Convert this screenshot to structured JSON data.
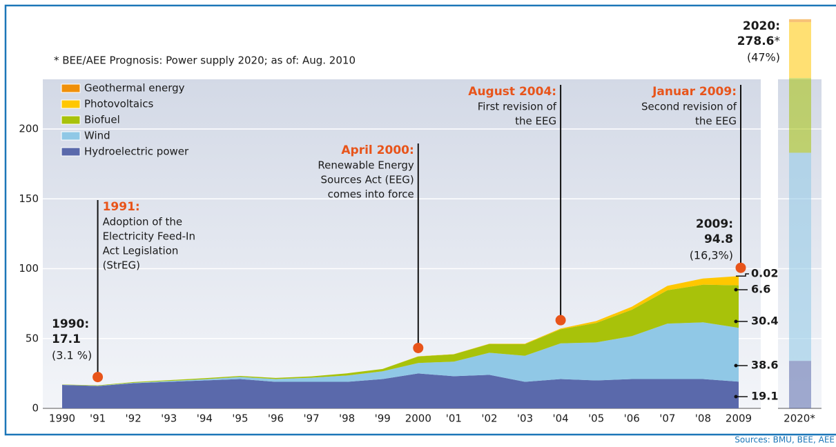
{
  "chart_data": {
    "type": "stacked-area",
    "footnote": "* BEE/AEE Prognosis: Power supply 2020; as of: Aug. 2010",
    "source": "Sources: BMU, BEE, AEE",
    "categories": [
      "1990",
      "'91",
      "'92",
      "'93",
      "'94",
      "'95",
      "'96",
      "'97",
      "'98",
      "'99",
      "2000",
      "'01",
      "'02",
      "'03",
      "'04",
      "'05",
      "'06",
      "'07",
      "'08",
      "2009"
    ],
    "forecast_category": "2020*",
    "ylim": [
      0,
      280
    ],
    "yticks": [
      0,
      50,
      100,
      150,
      200
    ],
    "grid": true,
    "series": [
      {
        "name": "Hydroelectric power",
        "color": "#5a69ab",
        "values": [
          16.8,
          16,
          18,
          19,
          20,
          21,
          19,
          19,
          19,
          21,
          25,
          23,
          24,
          19,
          21,
          20,
          21,
          21,
          21,
          19.1
        ],
        "forecast": 34
      },
      {
        "name": "Wind",
        "color": "#90c8e6",
        "values": [
          0.1,
          0.2,
          0.3,
          0.6,
          0.9,
          1.5,
          2,
          3,
          4.5,
          5.5,
          7.5,
          10.5,
          15.8,
          18.7,
          25.5,
          27.2,
          30.7,
          39.7,
          40.6,
          38.6
        ],
        "forecast": 149
      },
      {
        "name": "Biofuel",
        "color": "#a8c20a",
        "values": [
          0.2,
          0.3,
          0.5,
          0.6,
          0.7,
          0.7,
          0.8,
          0.9,
          1.6,
          1.7,
          4.7,
          5.2,
          6.3,
          8.3,
          10.1,
          14,
          18.9,
          23.9,
          27,
          30.4
        ],
        "forecast": 53.5
      },
      {
        "name": "Photovoltaics",
        "color": "#ffc700",
        "values": [
          0,
          0,
          0,
          0,
          0,
          0,
          0,
          0,
          0,
          0,
          0.1,
          0.1,
          0.2,
          0.3,
          0.6,
          1.3,
          2.2,
          3.1,
          4.4,
          6.6
        ],
        "forecast": 40
      },
      {
        "name": "Geothermal energy",
        "color": "#f0900a",
        "values": [
          0,
          0,
          0,
          0,
          0,
          0,
          0,
          0,
          0,
          0,
          0,
          0,
          0,
          0,
          0,
          0,
          0,
          0,
          0.01,
          0.02
        ],
        "forecast": 2.1
      }
    ],
    "totals": [
      {
        "label": "1990:",
        "total": 17.1,
        "share": "(3.1 %)"
      },
      {
        "label": "2009:",
        "total": 94.8,
        "share": "(16,3%)"
      },
      {
        "label": "2020:",
        "total": 278.6,
        "mark": "*",
        "share": "(47%)"
      }
    ],
    "annotations": [
      {
        "x": "'91",
        "title": "1991:",
        "lines": [
          "Adoption of the",
          "Electricity Feed-In",
          "Act Legislation",
          "(StrEG)"
        ],
        "align": "left"
      },
      {
        "x": "2000",
        "title": "April 2000:",
        "lines": [
          "Renewable Energy",
          "Sources Act (EEG)",
          "comes into force"
        ],
        "align": "right"
      },
      {
        "x": "'04",
        "title": "August 2004:",
        "lines": [
          "First revision of",
          "the EEG"
        ],
        "align": "right"
      },
      {
        "x": "2009",
        "title": "Januar 2009:",
        "lines": [
          "Second revision of",
          "the EEG"
        ],
        "align": "right"
      }
    ]
  }
}
